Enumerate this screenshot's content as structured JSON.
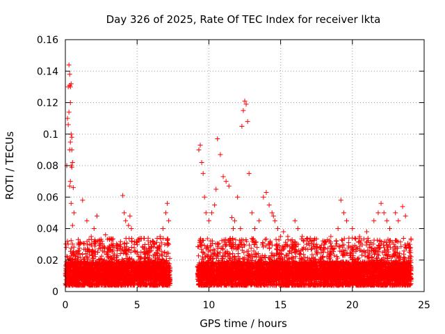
{
  "chart_data": {
    "type": "scatter",
    "title": "Day 326 of 2025, Rate Of TEC Index for receiver lkta",
    "xlabel": "GPS time / hours",
    "ylabel": "ROTI / TECUs",
    "xlim": [
      0,
      25
    ],
    "ylim": [
      0,
      0.16
    ],
    "xticks": [
      0,
      5,
      10,
      15,
      20,
      25
    ],
    "yticks": [
      0,
      0.02,
      0.04,
      0.06,
      0.08,
      0.1,
      0.12,
      0.14,
      0.16
    ],
    "xtick_labels": [
      "0",
      "5",
      "10",
      "15",
      "20",
      "25"
    ],
    "ytick_labels": [
      "0",
      "0.02",
      "0.04",
      "0.06",
      "0.08",
      "0.1",
      "0.12",
      "0.14",
      "0.16"
    ],
    "grid": true,
    "marker": "+",
    "color": "#ff0000",
    "series": [
      {
        "x": [
          0.1,
          0.15,
          0.2,
          0.25,
          0.3,
          0.35,
          0.4,
          0.45,
          0.5,
          0.55,
          0.6,
          0.2,
          0.25,
          0.3,
          0.35,
          0.4,
          0.45,
          0.3,
          0.35,
          0.4,
          0.45,
          0.3,
          0.35,
          0.4,
          0.5,
          0.8,
          1.0,
          1.2,
          1.5,
          1.8,
          2.0,
          2.2,
          2.4,
          2.6,
          2.8,
          3.0,
          3.2,
          3.4,
          3.6,
          3.8,
          4.0,
          4.1,
          4.2,
          4.4,
          4.5,
          4.6,
          4.8,
          5.0,
          5.2,
          5.4,
          5.6,
          5.8,
          6.0,
          6.2,
          6.4,
          6.6,
          6.8,
          7.0,
          7.1,
          7.2,
          9.3,
          9.4,
          9.5,
          9.6,
          9.7,
          9.8,
          10.0,
          10.2,
          10.4,
          10.5,
          10.6,
          10.8,
          11.0,
          11.2,
          11.4,
          11.6,
          11.7,
          11.8,
          12.0,
          12.2,
          12.3,
          12.4,
          12.5,
          12.6,
          12.7,
          12.8,
          13.0,
          13.2,
          13.5,
          13.8,
          14.0,
          14.2,
          14.4,
          14.5,
          14.6,
          14.8,
          15.0,
          15.2,
          15.5,
          15.8,
          16.0,
          16.2,
          16.5,
          16.8,
          17.0,
          17.5,
          18.0,
          18.5,
          19.0,
          19.2,
          19.4,
          19.6,
          20.0,
          20.5,
          21.0,
          21.5,
          21.8,
          22.0,
          22.2,
          22.4,
          22.6,
          23.0,
          23.2,
          23.5,
          23.7,
          24.0
        ],
        "y": [
          0.08,
          0.11,
          0.13,
          0.144,
          0.138,
          0.12,
          0.1,
          0.09,
          0.082,
          0.066,
          0.05,
          0.106,
          0.114,
          0.131,
          0.13,
          0.132,
          0.098,
          0.09,
          0.095,
          0.08,
          0.079,
          0.067,
          0.07,
          0.056,
          0.042,
          0.025,
          0.03,
          0.058,
          0.045,
          0.035,
          0.04,
          0.048,
          0.032,
          0.028,
          0.036,
          0.025,
          0.03,
          0.028,
          0.026,
          0.027,
          0.061,
          0.05,
          0.045,
          0.042,
          0.048,
          0.04,
          0.03,
          0.025,
          0.022,
          0.028,
          0.024,
          0.03,
          0.026,
          0.03,
          0.028,
          0.035,
          0.04,
          0.05,
          0.056,
          0.045,
          0.09,
          0.093,
          0.082,
          0.075,
          0.06,
          0.05,
          0.045,
          0.05,
          0.055,
          0.065,
          0.097,
          0.087,
          0.073,
          0.07,
          0.067,
          0.047,
          0.04,
          0.045,
          0.06,
          0.04,
          0.105,
          0.115,
          0.121,
          0.119,
          0.108,
          0.075,
          0.05,
          0.04,
          0.045,
          0.06,
          0.063,
          0.055,
          0.05,
          0.048,
          0.045,
          0.04,
          0.035,
          0.038,
          0.035,
          0.03,
          0.045,
          0.04,
          0.035,
          0.03,
          0.032,
          0.03,
          0.028,
          0.035,
          0.04,
          0.058,
          0.05,
          0.045,
          0.04,
          0.035,
          0.038,
          0.045,
          0.05,
          0.056,
          0.05,
          0.045,
          0.04,
          0.05,
          0.045,
          0.054,
          0.048,
          0.03
        ]
      }
    ]
  }
}
